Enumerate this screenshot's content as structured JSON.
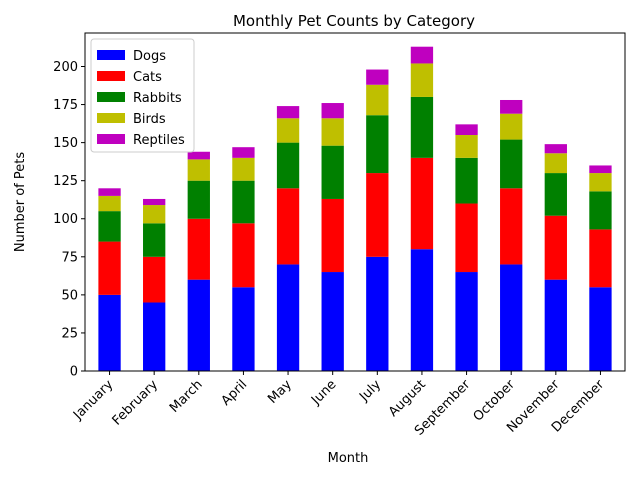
{
  "chart_data": {
    "type": "bar",
    "stacked": true,
    "title": "Monthly Pet Counts by Category",
    "xlabel": "Month",
    "ylabel": "Number of Pets",
    "ylim": [
      0,
      222
    ],
    "yticks": [
      0,
      25,
      50,
      75,
      100,
      125,
      150,
      175,
      200
    ],
    "grid": false,
    "legend_position": "top-left",
    "categories": [
      "January",
      "February",
      "March",
      "April",
      "May",
      "June",
      "July",
      "August",
      "September",
      "October",
      "November",
      "December"
    ],
    "series": [
      {
        "name": "Dogs",
        "color": "#0000ff",
        "values": [
          50,
          45,
          60,
          55,
          70,
          65,
          75,
          80,
          65,
          70,
          60,
          55
        ]
      },
      {
        "name": "Cats",
        "color": "#ff0000",
        "values": [
          35,
          30,
          40,
          42,
          50,
          48,
          55,
          60,
          45,
          50,
          42,
          38
        ]
      },
      {
        "name": "Rabbits",
        "color": "#008000",
        "values": [
          20,
          22,
          25,
          28,
          30,
          35,
          38,
          40,
          30,
          32,
          28,
          25
        ]
      },
      {
        "name": "Birds",
        "color": "#bfbf00",
        "values": [
          10,
          12,
          14,
          15,
          16,
          18,
          20,
          22,
          15,
          17,
          13,
          12
        ]
      },
      {
        "name": "Reptiles",
        "color": "#bf00bf",
        "values": [
          5,
          4,
          5,
          7,
          8,
          10,
          10,
          11,
          7,
          9,
          6,
          5
        ]
      }
    ]
  }
}
